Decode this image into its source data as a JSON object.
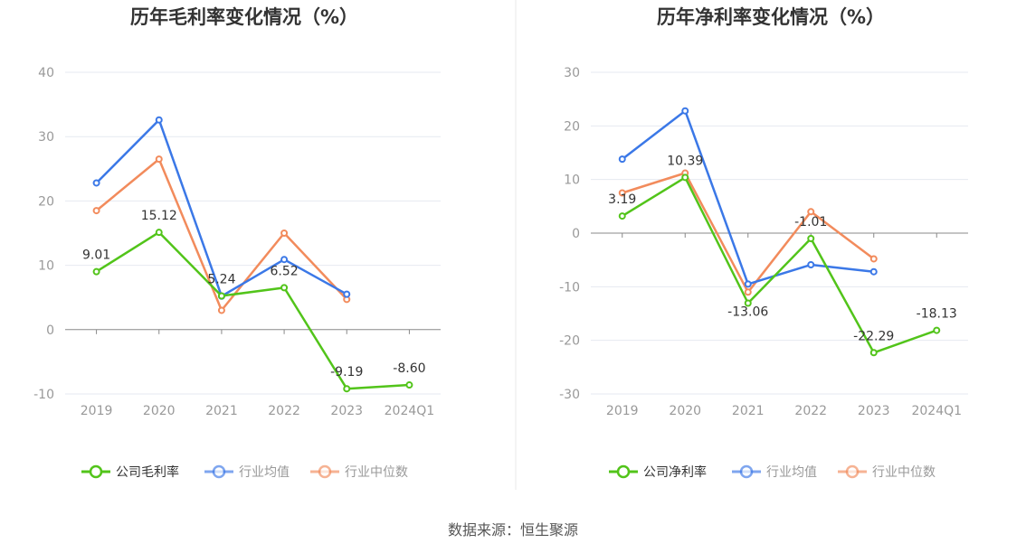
{
  "source_note": "数据来源：恒生聚源",
  "colors": {
    "company": "#52c41a",
    "industry_avg": "#3b78e7",
    "industry_median": "#f28b5c",
    "grid": "#e6e9f0",
    "axis": "#888888"
  },
  "chart_data": [
    {
      "type": "line",
      "title": "历年毛利率变化情况（%）",
      "categories": [
        "2019",
        "2020",
        "2021",
        "2022",
        "2023",
        "2024Q1"
      ],
      "ylim": [
        -10,
        40
      ],
      "yticks": [
        -10,
        0,
        10,
        20,
        30,
        40
      ],
      "grid": true,
      "legend_position": "bottom",
      "series": [
        {
          "name": "公司毛利率",
          "color": "#52c41a",
          "values": [
            9.01,
            15.12,
            5.24,
            6.52,
            -9.19,
            -8.6
          ],
          "labels": [
            "9.01",
            "15.12",
            "5.24",
            "6.52",
            "-9.19",
            "-8.60"
          ]
        },
        {
          "name": "行业均值",
          "color": "#3b78e7",
          "values": [
            22.8,
            32.6,
            5.2,
            10.9,
            5.5,
            null
          ]
        },
        {
          "name": "行业中位数",
          "color": "#f28b5c",
          "values": [
            18.5,
            26.5,
            3.0,
            15.0,
            4.7,
            null
          ]
        }
      ]
    },
    {
      "type": "line",
      "title": "历年净利率变化情况（%）",
      "categories": [
        "2019",
        "2020",
        "2021",
        "2022",
        "2023",
        "2024Q1"
      ],
      "ylim": [
        -30,
        30
      ],
      "yticks": [
        -30,
        -20,
        -10,
        0,
        10,
        20,
        30
      ],
      "grid": true,
      "legend_position": "bottom",
      "series": [
        {
          "name": "公司净利率",
          "color": "#52c41a",
          "values": [
            3.19,
            10.39,
            -13.06,
            -1.01,
            -22.29,
            -18.13
          ],
          "labels": [
            "3.19",
            "10.39",
            "-13.06",
            "-1.01",
            "-22.29",
            "-18.13"
          ]
        },
        {
          "name": "行业均值",
          "color": "#3b78e7",
          "values": [
            13.8,
            22.8,
            -9.5,
            -5.9,
            -7.2,
            null
          ]
        },
        {
          "name": "行业中位数",
          "color": "#f28b5c",
          "values": [
            7.5,
            11.2,
            -11.0,
            4.0,
            -4.8,
            null
          ]
        }
      ]
    }
  ]
}
